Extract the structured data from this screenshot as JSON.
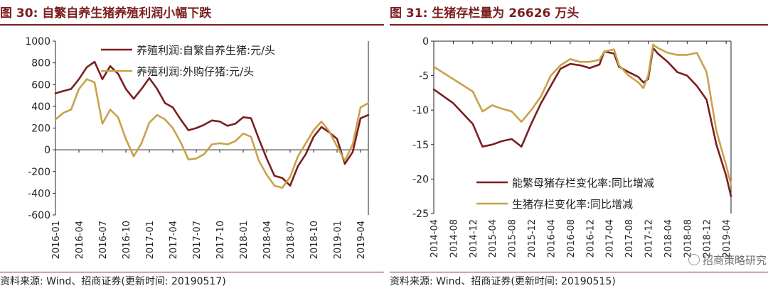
{
  "left": {
    "title": "图 30:  自繁自养生猪养殖利润小幅下跌",
    "source": "资料来源:  Wind、招商证券(更新时间:  20190517)"
  },
  "right": {
    "title": "图 31:  生猪存栏量为 26626 万头",
    "source": "资料来源:  Wind、招商证券(更新时间:  20190515)",
    "watermark": "招商策略研究"
  },
  "colors": {
    "dark_red": "#7b1e1e",
    "gold": "#c8a24a",
    "rule": "#7b1e1e"
  },
  "chart_data": [
    {
      "type": "line",
      "x_type": "date",
      "x_ticks": [
        "2016-01",
        "2016-04",
        "2016-07",
        "2016-10",
        "2017-01",
        "2017-04",
        "2017-07",
        "2017-10",
        "2018-01",
        "2018-04",
        "2018-07",
        "2018-10",
        "2019-01",
        "2019-04"
      ],
      "ylim": [
        -600,
        1000
      ],
      "y_ticks": [
        -600,
        -400,
        -200,
        0,
        200,
        400,
        600,
        800,
        1000
      ],
      "legend_position": "top-right",
      "series": [
        {
          "name": "养殖利润:自繁自养生猪:元/头",
          "color": "#7b1e1e",
          "points": [
            [
              "2016-01",
              520
            ],
            [
              "2016-02",
              540
            ],
            [
              "2016-03",
              560
            ],
            [
              "2016-04",
              650
            ],
            [
              "2016-05",
              760
            ],
            [
              "2016-06",
              810
            ],
            [
              "2016-07",
              650
            ],
            [
              "2016-08",
              770
            ],
            [
              "2016-09",
              700
            ],
            [
              "2016-10",
              560
            ],
            [
              "2016-11",
              470
            ],
            [
              "2016-12",
              560
            ],
            [
              "2017-01",
              660
            ],
            [
              "2017-02",
              560
            ],
            [
              "2017-03",
              430
            ],
            [
              "2017-04",
              390
            ],
            [
              "2017-05",
              280
            ],
            [
              "2017-06",
              180
            ],
            [
              "2017-07",
              200
            ],
            [
              "2017-08",
              230
            ],
            [
              "2017-09",
              270
            ],
            [
              "2017-10",
              260
            ],
            [
              "2017-11",
              220
            ],
            [
              "2017-12",
              240
            ],
            [
              "2018-01",
              300
            ],
            [
              "2018-02",
              290
            ],
            [
              "2018-03",
              100
            ],
            [
              "2018-04",
              -80
            ],
            [
              "2018-05",
              -240
            ],
            [
              "2018-06",
              -260
            ],
            [
              "2018-07",
              -330
            ],
            [
              "2018-08",
              -150
            ],
            [
              "2018-09",
              -40
            ],
            [
              "2018-10",
              120
            ],
            [
              "2018-11",
              210
            ],
            [
              "2018-12",
              160
            ],
            [
              "2019-01",
              100
            ],
            [
              "2019-02",
              -130
            ],
            [
              "2019-03",
              -20
            ],
            [
              "2019-04",
              290
            ],
            [
              "2019-05",
              320
            ]
          ]
        },
        {
          "name": "养殖利润:外购仔猪:元/头",
          "color": "#c8a24a",
          "points": [
            [
              "2016-01",
              280
            ],
            [
              "2016-02",
              340
            ],
            [
              "2016-03",
              370
            ],
            [
              "2016-04",
              560
            ],
            [
              "2016-05",
              650
            ],
            [
              "2016-06",
              620
            ],
            [
              "2016-07",
              240
            ],
            [
              "2016-08",
              370
            ],
            [
              "2016-09",
              300
            ],
            [
              "2016-10",
              100
            ],
            [
              "2016-11",
              -60
            ],
            [
              "2016-12",
              60
            ],
            [
              "2017-01",
              250
            ],
            [
              "2017-02",
              320
            ],
            [
              "2017-03",
              280
            ],
            [
              "2017-04",
              200
            ],
            [
              "2017-05",
              70
            ],
            [
              "2017-06",
              -90
            ],
            [
              "2017-07",
              -80
            ],
            [
              "2017-08",
              -40
            ],
            [
              "2017-09",
              50
            ],
            [
              "2017-10",
              60
            ],
            [
              "2017-11",
              50
            ],
            [
              "2017-12",
              80
            ],
            [
              "2018-01",
              150
            ],
            [
              "2018-02",
              120
            ],
            [
              "2018-03",
              -100
            ],
            [
              "2018-04",
              -230
            ],
            [
              "2018-05",
              -330
            ],
            [
              "2018-06",
              -350
            ],
            [
              "2018-07",
              -250
            ],
            [
              "2018-08",
              -60
            ],
            [
              "2018-09",
              60
            ],
            [
              "2018-10",
              180
            ],
            [
              "2018-11",
              260
            ],
            [
              "2018-12",
              170
            ],
            [
              "2019-01",
              30
            ],
            [
              "2019-02",
              -100
            ],
            [
              "2019-03",
              50
            ],
            [
              "2019-04",
              390
            ],
            [
              "2019-05",
              430
            ]
          ]
        }
      ]
    },
    {
      "type": "line",
      "x_type": "date",
      "x_ticks": [
        "2014-04",
        "2014-08",
        "2014-12",
        "2015-04",
        "2015-08",
        "2015-12",
        "2016-04",
        "2016-08",
        "2016-12",
        "2017-04",
        "2017-08",
        "2017-12",
        "2018-04",
        "2018-08",
        "2018-12",
        "2019-04"
      ],
      "ylim": [
        -25,
        0
      ],
      "y_ticks": [
        -25,
        -20,
        -15,
        -10,
        -5,
        0
      ],
      "legend_position": "bottom-right",
      "series": [
        {
          "name": "能繁母猪存栏变化率:同比增减",
          "color": "#7b1e1e",
          "points": [
            [
              "2014-04",
              -7.0
            ],
            [
              "2014-08",
              -9.0
            ],
            [
              "2014-12",
              -12.0
            ],
            [
              "2015-02",
              -15.3
            ],
            [
              "2015-04",
              -15.0
            ],
            [
              "2015-06",
              -14.5
            ],
            [
              "2015-08",
              -14.2
            ],
            [
              "2015-10",
              -15.3
            ],
            [
              "2015-12",
              -12.0
            ],
            [
              "2016-02",
              -9.0
            ],
            [
              "2016-04",
              -6.5
            ],
            [
              "2016-06",
              -4.0
            ],
            [
              "2016-08",
              -3.3
            ],
            [
              "2016-10",
              -3.5
            ],
            [
              "2016-12",
              -3.9
            ],
            [
              "2017-02",
              -3.4
            ],
            [
              "2017-03",
              -1.5
            ],
            [
              "2017-05",
              -1.8
            ],
            [
              "2017-06",
              -3.7
            ],
            [
              "2017-08",
              -4.5
            ],
            [
              "2017-10",
              -5.2
            ],
            [
              "2017-11",
              -6.0
            ],
            [
              "2017-12",
              -5.5
            ],
            [
              "2018-01",
              -1.0
            ],
            [
              "2018-02",
              -1.8
            ],
            [
              "2018-04",
              -3.0
            ],
            [
              "2018-06",
              -4.5
            ],
            [
              "2018-08",
              -5.0
            ],
            [
              "2018-10",
              -6.5
            ],
            [
              "2018-12",
              -8.5
            ],
            [
              "2019-02",
              -15.0
            ],
            [
              "2019-04",
              -19.5
            ],
            [
              "2019-05",
              -22.5
            ]
          ]
        },
        {
          "name": "生猪存栏变化率:同比增减",
          "color": "#c8a24a",
          "points": [
            [
              "2014-04",
              -3.7
            ],
            [
              "2014-08",
              -5.5
            ],
            [
              "2014-12",
              -7.3
            ],
            [
              "2015-02",
              -10.2
            ],
            [
              "2015-04",
              -9.3
            ],
            [
              "2015-06",
              -9.8
            ],
            [
              "2015-08",
              -10.2
            ],
            [
              "2015-10",
              -11.7
            ],
            [
              "2015-12",
              -10.0
            ],
            [
              "2016-02",
              -8.0
            ],
            [
              "2016-04",
              -5.0
            ],
            [
              "2016-06",
              -3.5
            ],
            [
              "2016-08",
              -2.6
            ],
            [
              "2016-10",
              -3.0
            ],
            [
              "2016-12",
              -3.0
            ],
            [
              "2017-02",
              -2.7
            ],
            [
              "2017-03",
              -1.5
            ],
            [
              "2017-05",
              -1.2
            ],
            [
              "2017-06",
              -3.5
            ],
            [
              "2017-08",
              -5.0
            ],
            [
              "2017-10",
              -6.0
            ],
            [
              "2017-11",
              -6.8
            ],
            [
              "2017-12",
              -5.0
            ],
            [
              "2018-01",
              -0.5
            ],
            [
              "2018-02",
              -1.0
            ],
            [
              "2018-04",
              -1.7
            ],
            [
              "2018-06",
              -2.0
            ],
            [
              "2018-08",
              -2.0
            ],
            [
              "2018-10",
              -1.7
            ],
            [
              "2018-12",
              -4.5
            ],
            [
              "2019-02",
              -13.0
            ],
            [
              "2019-04",
              -18.0
            ],
            [
              "2019-05",
              -20.8
            ]
          ]
        }
      ]
    }
  ]
}
